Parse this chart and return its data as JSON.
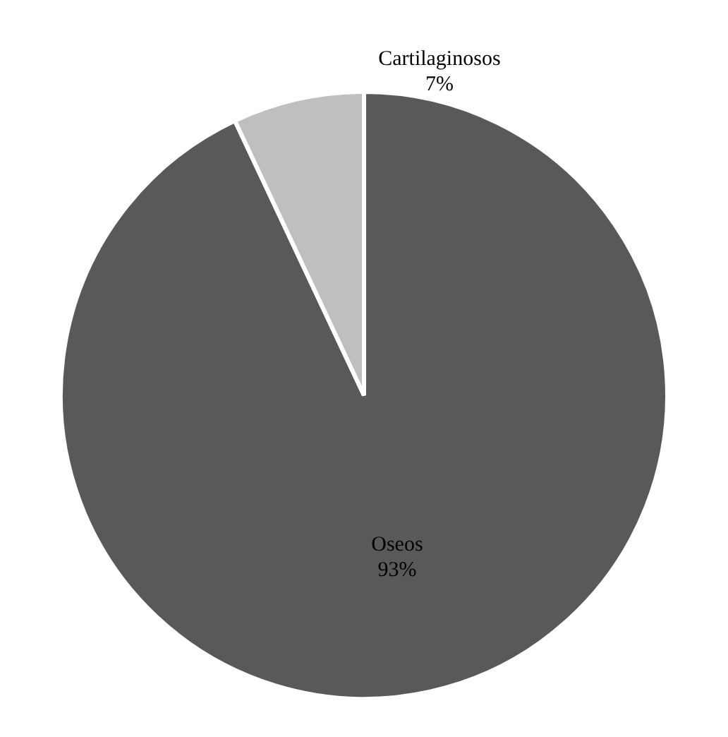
{
  "chart_data": {
    "type": "pie",
    "categories": [
      "Oseos",
      "Cartilaginosos"
    ],
    "values": [
      93,
      7
    ],
    "colors": [
      "#595959",
      "#bfbfbf"
    ],
    "value_labels": [
      "93%",
      "7%"
    ],
    "legend": false
  }
}
